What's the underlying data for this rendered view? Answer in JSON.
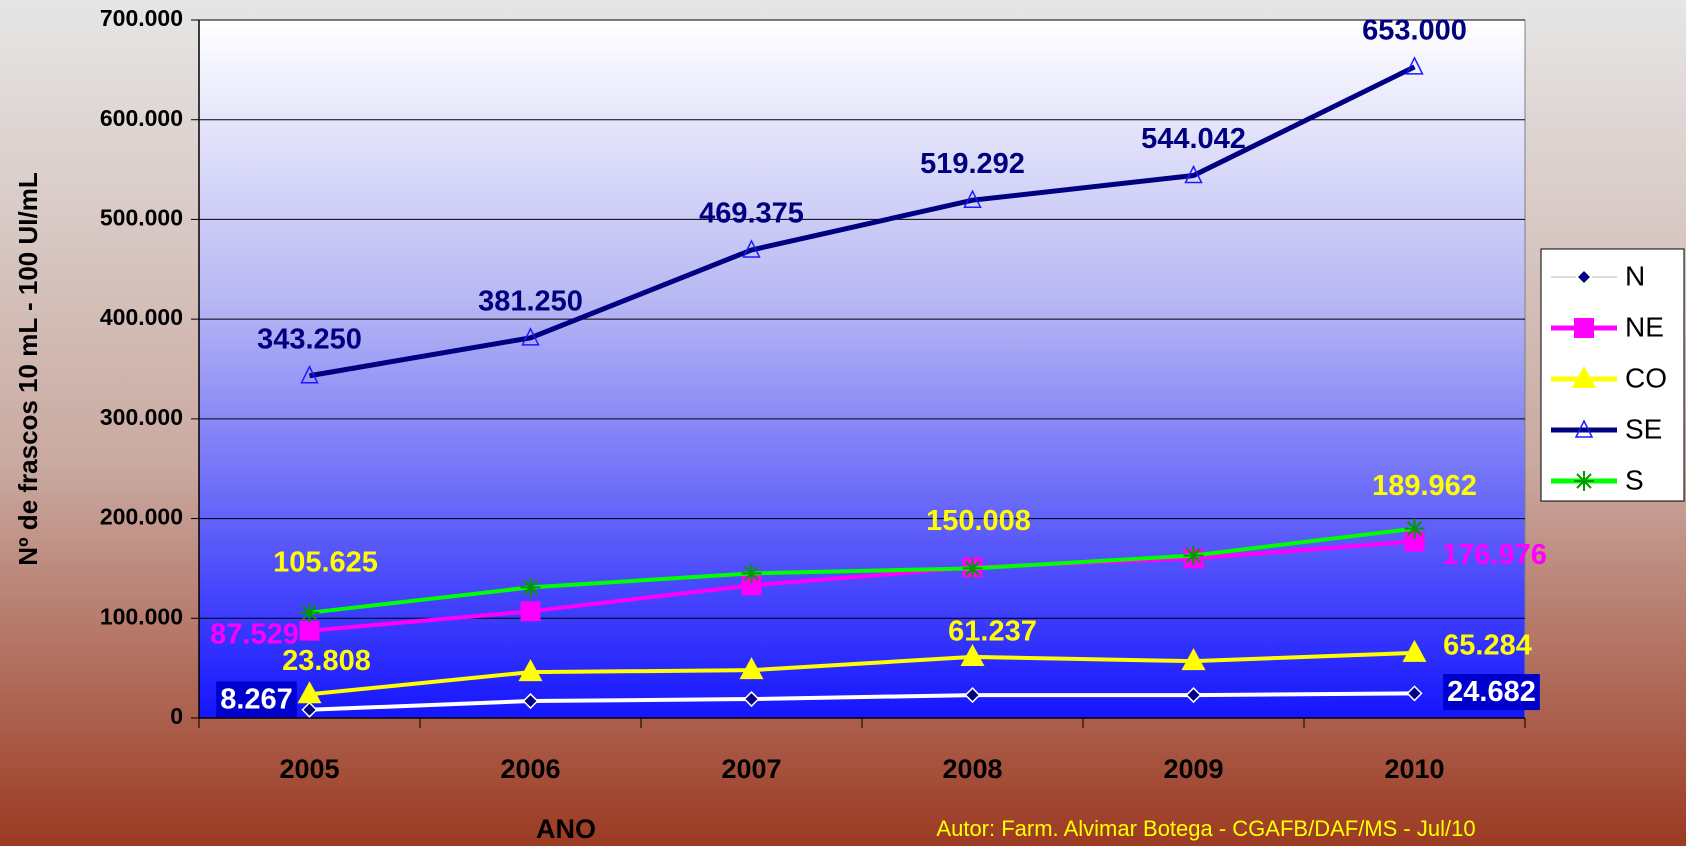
{
  "chart_data": {
    "type": "line",
    "x_label": "ANO",
    "y_label": "Nº de frascos 10 mL - 100 UI/mL",
    "footnote": "Autor: Farm. Alvimar Botega - CGAFB/DAF/MS - Jul/10",
    "categories": [
      "2005",
      "2006",
      "2007",
      "2008",
      "2009",
      "2010"
    ],
    "ylim": [
      0,
      700000
    ],
    "yticks": [
      0,
      {
        "value": 100000,
        "label": "100.000"
      },
      {
        "value": 200000,
        "label": "200.000"
      },
      {
        "value": 300000,
        "label": "300.000"
      },
      {
        "value": 400000,
        "label": "400.000"
      },
      {
        "value": 500000,
        "label": "500.000"
      },
      {
        "value": 600000,
        "label": "600.000"
      },
      {
        "value": 700000,
        "label": "700.000"
      }
    ],
    "grid": true,
    "legend": "right",
    "series": [
      {
        "name": "N",
        "color": "#ffffff",
        "marker": "diamond",
        "label_color": "#ffffff",
        "values": [
          8267,
          17000,
          19000,
          23000,
          23000,
          24682
        ],
        "value_labels": [
          "8.267",
          null,
          null,
          null,
          null,
          "24.682"
        ]
      },
      {
        "name": "NE",
        "color": "#ff00ff",
        "marker": "square",
        "label_color": "#ff00ff",
        "values": [
          87529,
          107000,
          133000,
          151000,
          160000,
          176976
        ],
        "value_labels": [
          "87.529",
          null,
          null,
          null,
          null,
          "176.976"
        ]
      },
      {
        "name": "CO",
        "color": "#ffff00",
        "marker": "triangle",
        "label_color": "#ffff00",
        "values": [
          23808,
          46000,
          48000,
          61237,
          57000,
          65284
        ],
        "value_labels": [
          "23.808",
          null,
          null,
          "61.237",
          null,
          "65.284"
        ]
      },
      {
        "name": "SE",
        "color": "#000080",
        "marker": "open-triangle",
        "label_color": "#000080",
        "values": [
          343250,
          381250,
          469375,
          519292,
          544042,
          653000
        ],
        "value_labels": [
          "343.250",
          "381.250",
          "469.375",
          "519.292",
          "544.042",
          "653.000"
        ]
      },
      {
        "name": "S",
        "color": "#00ff00",
        "marker": "asterisk",
        "label_color": "#ffff00",
        "values": [
          105625,
          131000,
          145000,
          150008,
          163000,
          189962
        ],
        "value_labels": [
          "105.625",
          null,
          null,
          "150.008",
          null,
          "189.962"
        ]
      }
    ]
  }
}
